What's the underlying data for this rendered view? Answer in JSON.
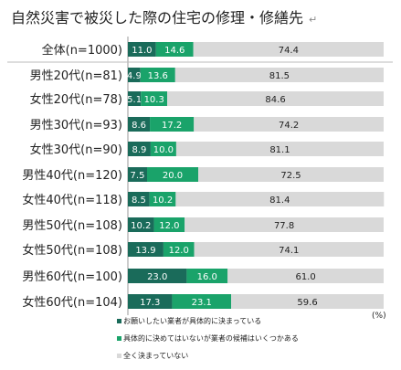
{
  "chart_data": {
    "type": "bar",
    "stacked": true,
    "orientation": "horizontal",
    "title": "自然災害で被災した際の住宅の修理・修繕先",
    "unit": "(%)",
    "categories": [
      "全体(n=1000)",
      "男性20代(n=81)",
      "女性20代(n=78)",
      "男性30代(n=93)",
      "女性30代(n=90)",
      "男性40代(n=120)",
      "女性40代(n=118)",
      "男性50代(n=108)",
      "女性50代(n=108)",
      "男性60代(n=100)",
      "女性60代(n=104)"
    ],
    "series": [
      {
        "name": "お願いしたい業者が具体的に決まっている",
        "color": "#1a6b5a",
        "values": [
          11.0,
          4.9,
          5.1,
          8.6,
          8.9,
          7.5,
          8.5,
          10.2,
          13.9,
          23.0,
          17.3
        ]
      },
      {
        "name": "具体的に決めてはいないが業者の候補はいくつかある",
        "color": "#1aa36a",
        "values": [
          14.6,
          13.6,
          10.3,
          17.2,
          10.0,
          20.0,
          10.2,
          12.0,
          12.0,
          16.0,
          23.1
        ]
      },
      {
        "name": "全く決まっていない",
        "color": "#d9d9d9",
        "values": [
          74.4,
          81.5,
          84.6,
          74.2,
          81.1,
          72.5,
          81.4,
          77.8,
          74.1,
          61.0,
          59.6
        ]
      }
    ],
    "value_labels": [
      [
        "11.0",
        "4.9",
        "5.1",
        "8.6",
        "8.9",
        "7.5",
        "8.5",
        "10.2",
        "13.9",
        "23.0",
        "17.3"
      ],
      [
        "14.6",
        "13.6",
        "10.3",
        "17.2",
        "10.0",
        "20.0",
        "10.2",
        "12.0",
        "12.0",
        "16.0",
        "23.1"
      ],
      [
        "74.4",
        "81.5",
        "84.6",
        "74.2",
        "81.1",
        "72.5",
        "81.4",
        "77.8",
        "74.1",
        "61.0",
        "59.6"
      ]
    ],
    "xlim": [
      0,
      100
    ],
    "grid": false,
    "legend_position": "bottom"
  },
  "title_suffix": "↵"
}
